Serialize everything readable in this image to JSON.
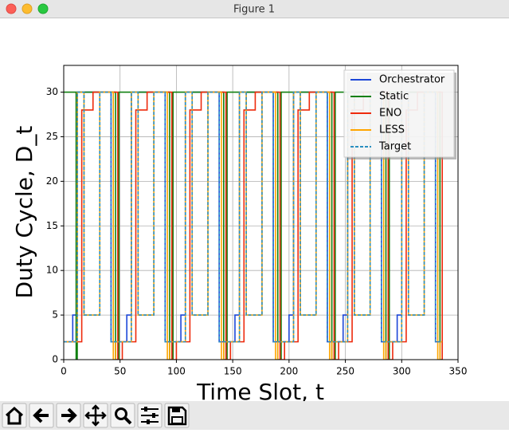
{
  "window_title": "Figure 1",
  "chart_data": {
    "type": "line",
    "xlabel": "Time Slot, t",
    "ylabel": "Duty Cycle, D_t",
    "xlim": [
      0,
      350
    ],
    "ylim": [
      0,
      33
    ],
    "xticks": [
      0,
      50,
      100,
      150,
      200,
      250,
      300,
      350
    ],
    "yticks": [
      0,
      5,
      10,
      15,
      20,
      25,
      30
    ],
    "grid": true,
    "legend": "upper right",
    "drawstyle": "steps-post",
    "series": [
      {
        "name": "Orchestrator",
        "color": "#1c46d8",
        "style": "solid",
        "x": [
          0,
          8,
          12,
          42,
          56,
          60,
          90,
          104,
          108,
          138,
          152,
          156,
          186,
          200,
          204,
          234,
          248,
          252,
          282,
          296,
          300,
          330,
          336
        ],
        "values": [
          2,
          5,
          30,
          2,
          5,
          30,
          2,
          5,
          30,
          2,
          5,
          30,
          2,
          5,
          30,
          2,
          5,
          30,
          2,
          5,
          30,
          2,
          2
        ]
      },
      {
        "name": "Static",
        "color": "#108010",
        "style": "solid",
        "x": [
          0,
          11,
          12,
          46,
          49,
          94,
          97,
          142,
          145,
          190,
          193,
          238,
          241,
          286,
          289,
          334,
          336
        ],
        "values": [
          30,
          0,
          30,
          0,
          30,
          0,
          30,
          0,
          30,
          0,
          30,
          0,
          30,
          0,
          30,
          0,
          0
        ]
      },
      {
        "name": "ENO",
        "color": "#ee2a0c",
        "style": "solid",
        "x": [
          0,
          16,
          26,
          48,
          52,
          64,
          74,
          96,
          100,
          112,
          122,
          144,
          148,
          160,
          170,
          192,
          196,
          208,
          218,
          240,
          244,
          256,
          266,
          288,
          292,
          304,
          314,
          336
        ],
        "values": [
          2,
          28,
          30,
          0,
          2,
          28,
          30,
          0,
          2,
          28,
          30,
          0,
          2,
          28,
          30,
          0,
          2,
          28,
          30,
          0,
          2,
          28,
          30,
          0,
          2,
          28,
          30,
          0
        ]
      },
      {
        "name": "LESS",
        "color": "#ffa500",
        "style": "solid",
        "x": [
          0,
          12,
          18,
          32,
          44,
          46,
          60,
          66,
          80,
          92,
          94,
          108,
          114,
          128,
          140,
          142,
          156,
          162,
          176,
          188,
          190,
          204,
          210,
          224,
          236,
          238,
          252,
          258,
          272,
          284,
          286,
          300,
          306,
          320,
          332,
          334,
          336
        ],
        "values": [
          2,
          30,
          5,
          30,
          0,
          2,
          30,
          5,
          30,
          0,
          2,
          30,
          5,
          30,
          0,
          2,
          30,
          5,
          30,
          0,
          2,
          30,
          5,
          30,
          0,
          2,
          30,
          5,
          30,
          0,
          2,
          30,
          5,
          30,
          0,
          2,
          2
        ]
      },
      {
        "name": "Target",
        "color": "#2a8fc0",
        "style": "dashed",
        "x": [
          0,
          12,
          18,
          32,
          42,
          60,
          66,
          80,
          90,
          108,
          114,
          128,
          138,
          156,
          162,
          176,
          186,
          204,
          210,
          224,
          234,
          252,
          258,
          272,
          282,
          300,
          306,
          320,
          330,
          336
        ],
        "values": [
          2,
          30,
          5,
          30,
          2,
          30,
          5,
          30,
          2,
          30,
          5,
          30,
          2,
          30,
          5,
          30,
          2,
          30,
          5,
          30,
          2,
          30,
          5,
          30,
          2,
          30,
          5,
          30,
          2,
          2
        ]
      }
    ]
  }
}
